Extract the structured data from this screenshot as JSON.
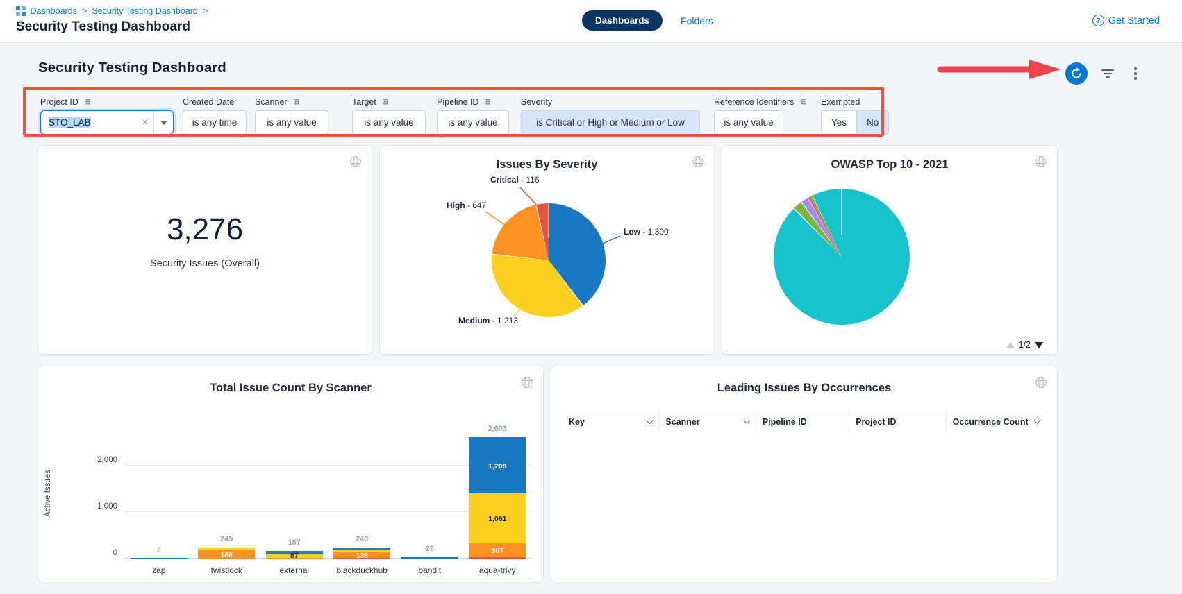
{
  "colors": {
    "accent": "#0278d5",
    "pill": "#0a3561",
    "annotation": "#f4503f"
  },
  "topbar": {
    "breadcrumb": {
      "items": [
        "Dashboards",
        "Security Testing Dashboard"
      ],
      "separator": ">"
    },
    "page_title": "Security Testing Dashboard",
    "tabs": [
      {
        "label": "Dashboards",
        "active": true
      },
      {
        "label": "Folders",
        "active": false
      }
    ],
    "help_glyph": "?",
    "get_started": "Get Started"
  },
  "main": {
    "heading": "Security Testing Dashboard"
  },
  "filters": {
    "project_id": {
      "label": "Project ID",
      "linked": true,
      "value": "STO_LAB",
      "clear_glyph": "×"
    },
    "created_date": {
      "label": "Created Date",
      "value": "is any time"
    },
    "scanner": {
      "label": "Scanner",
      "linked": true,
      "value": "is any value"
    },
    "target": {
      "label": "Target",
      "linked": true,
      "value": "is any value"
    },
    "pipeline_id": {
      "label": "Pipeline ID",
      "linked": true,
      "value": "is any value"
    },
    "severity": {
      "label": "Severity",
      "value": "is Critical or High or Medium or Low"
    },
    "reference_identifiers": {
      "label": "Reference Identifiers",
      "linked": true,
      "value": "is any value"
    },
    "exempted": {
      "label": "Exempted",
      "options": [
        "Yes",
        "No"
      ],
      "selected": "No"
    }
  },
  "cards": {
    "overall": {
      "value": "3,276",
      "label": "Security Issues (Overall)"
    },
    "owasp": {
      "pagination": "1/2"
    },
    "occurrences": {
      "title": "Leading Issues By Occurrences",
      "columns": [
        {
          "label": "Key",
          "sortable": true
        },
        {
          "label": "Scanner",
          "sortable": true
        },
        {
          "label": "Pipeline ID",
          "sortable": false
        },
        {
          "label": "Project ID",
          "sortable": false
        },
        {
          "label": "Occurrence Count",
          "sortable": true
        }
      ],
      "rows": []
    }
  },
  "chart_data": [
    {
      "type": "pie",
      "title": "Issues By Severity",
      "start_angle": "top",
      "direction": "clockwise",
      "slices": [
        {
          "label_bold": "Low",
          "label_rest": " - 1,300",
          "value": 1300,
          "color": "#1878c2"
        },
        {
          "label_bold": "Medium",
          "label_rest": " - 1,213",
          "value": 1213,
          "color": "#fdd020"
        },
        {
          "label_bold": "High",
          "label_rest": " - 647",
          "value": 647,
          "color": "#fb9222"
        },
        {
          "label_bold": "Critical",
          "label_rest": " - 116",
          "value": 116,
          "color": "#e5543f"
        }
      ]
    },
    {
      "type": "pie",
      "title": "OWASP Top 10 - 2021",
      "start_angle": "top",
      "direction": "clockwise",
      "values_are_percent": true,
      "slices": [
        {
          "value": 87.6,
          "color": "#16c2cc"
        },
        {
          "value": 2.3,
          "color": "#7db33b"
        },
        {
          "value": 1.8,
          "color": "#a08ce5"
        },
        {
          "value": 0.5,
          "color": "#f851a5"
        },
        {
          "value": 0.6,
          "color": "#7db33b"
        },
        {
          "value": 7.2,
          "color": "#16c2cc"
        }
      ],
      "pagination": "1/2"
    },
    {
      "type": "stacked_bar",
      "title": "Total Issue Count By Scanner",
      "ylabel": "Active Issues",
      "yticks": [
        "0",
        "1,000",
        "2,000"
      ],
      "ytick_values": [
        0,
        1000,
        2000
      ],
      "ylim": [
        0,
        2800
      ],
      "categories": [
        "zap",
        "twistlock",
        "external",
        "blackduckhub",
        "bandit",
        "aqua-trivy"
      ],
      "totals": [
        "2",
        "245",
        "157",
        "240",
        "29",
        "2,603"
      ],
      "series": [
        {
          "name": "Critical",
          "color": "#e5543f",
          "values": [
            0,
            0,
            0,
            12,
            0,
            27
          ]
        },
        {
          "name": "High",
          "color": "#fb9222",
          "values": [
            0,
            188,
            8,
            138,
            0,
            307
          ]
        },
        {
          "name": "Medium",
          "color": "#fdd020",
          "values": [
            1,
            30,
            87,
            45,
            0,
            1061
          ]
        },
        {
          "name": "Low",
          "color": "#1878c2",
          "values": [
            1,
            27,
            62,
            45,
            29,
            1208
          ]
        }
      ],
      "value_labels": [
        {
          "category": "twistlock",
          "series": "High",
          "text": "188"
        },
        {
          "category": "external",
          "series": "Medium",
          "text": "87"
        },
        {
          "category": "blackduckhub",
          "series": "High",
          "text": "138"
        },
        {
          "category": "aqua-trivy",
          "series": "High",
          "text": "307"
        },
        {
          "category": "aqua-trivy",
          "series": "Medium",
          "text": "1,061"
        },
        {
          "category": "aqua-trivy",
          "series": "Low",
          "text": "1,208"
        }
      ]
    }
  ]
}
